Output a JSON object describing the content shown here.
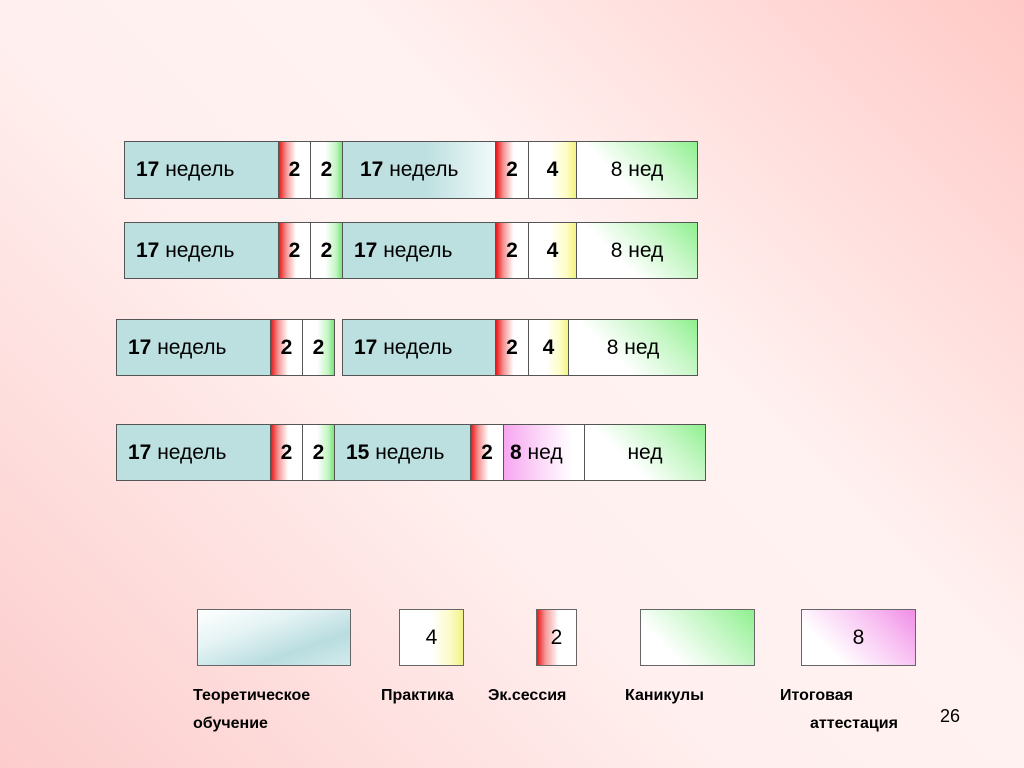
{
  "rows": [
    {
      "theory1_num": "17",
      "theory1_unit": "недель",
      "exam1": "2",
      "break1": "2",
      "theory2_num": "17",
      "theory2_unit": "недель",
      "exam2": "2",
      "practice": "4",
      "vacation": "8 нед"
    },
    {
      "theory1_num": "17",
      "theory1_unit": "недель",
      "exam1": "2",
      "break1": "2",
      "theory2_num": "17",
      "theory2_unit": "недель",
      "exam2": "2",
      "practice": "4",
      "vacation": "8 нед"
    },
    {
      "theory1_num": "17",
      "theory1_unit": "недель",
      "exam1": "2",
      "break1": "2",
      "theory2_num": "17",
      "theory2_unit": "недель",
      "exam2": "2",
      "practice": "4",
      "vacation": "8 нед"
    },
    {
      "theory1_num": "17",
      "theory1_unit": "недель",
      "exam1": "2",
      "break1": "2",
      "theory2_num": "15",
      "theory2_unit": "недель",
      "exam2": "2",
      "gia_num": "8",
      "gia_unit": "нед",
      "vacation": "нед"
    }
  ],
  "legend": {
    "theory": {
      "value": "",
      "label_line1": "Теоретическое",
      "label_line2": "обучение"
    },
    "practice": {
      "value": "4",
      "label": "Практика"
    },
    "exam": {
      "value": "2",
      "label": "Эк.сессия"
    },
    "vacation": {
      "value": "",
      "label": "Каникулы"
    },
    "gia": {
      "value": "8",
      "label_line1": "Итоговая",
      "label_line2": "аттестация"
    }
  },
  "page_number": "26"
}
